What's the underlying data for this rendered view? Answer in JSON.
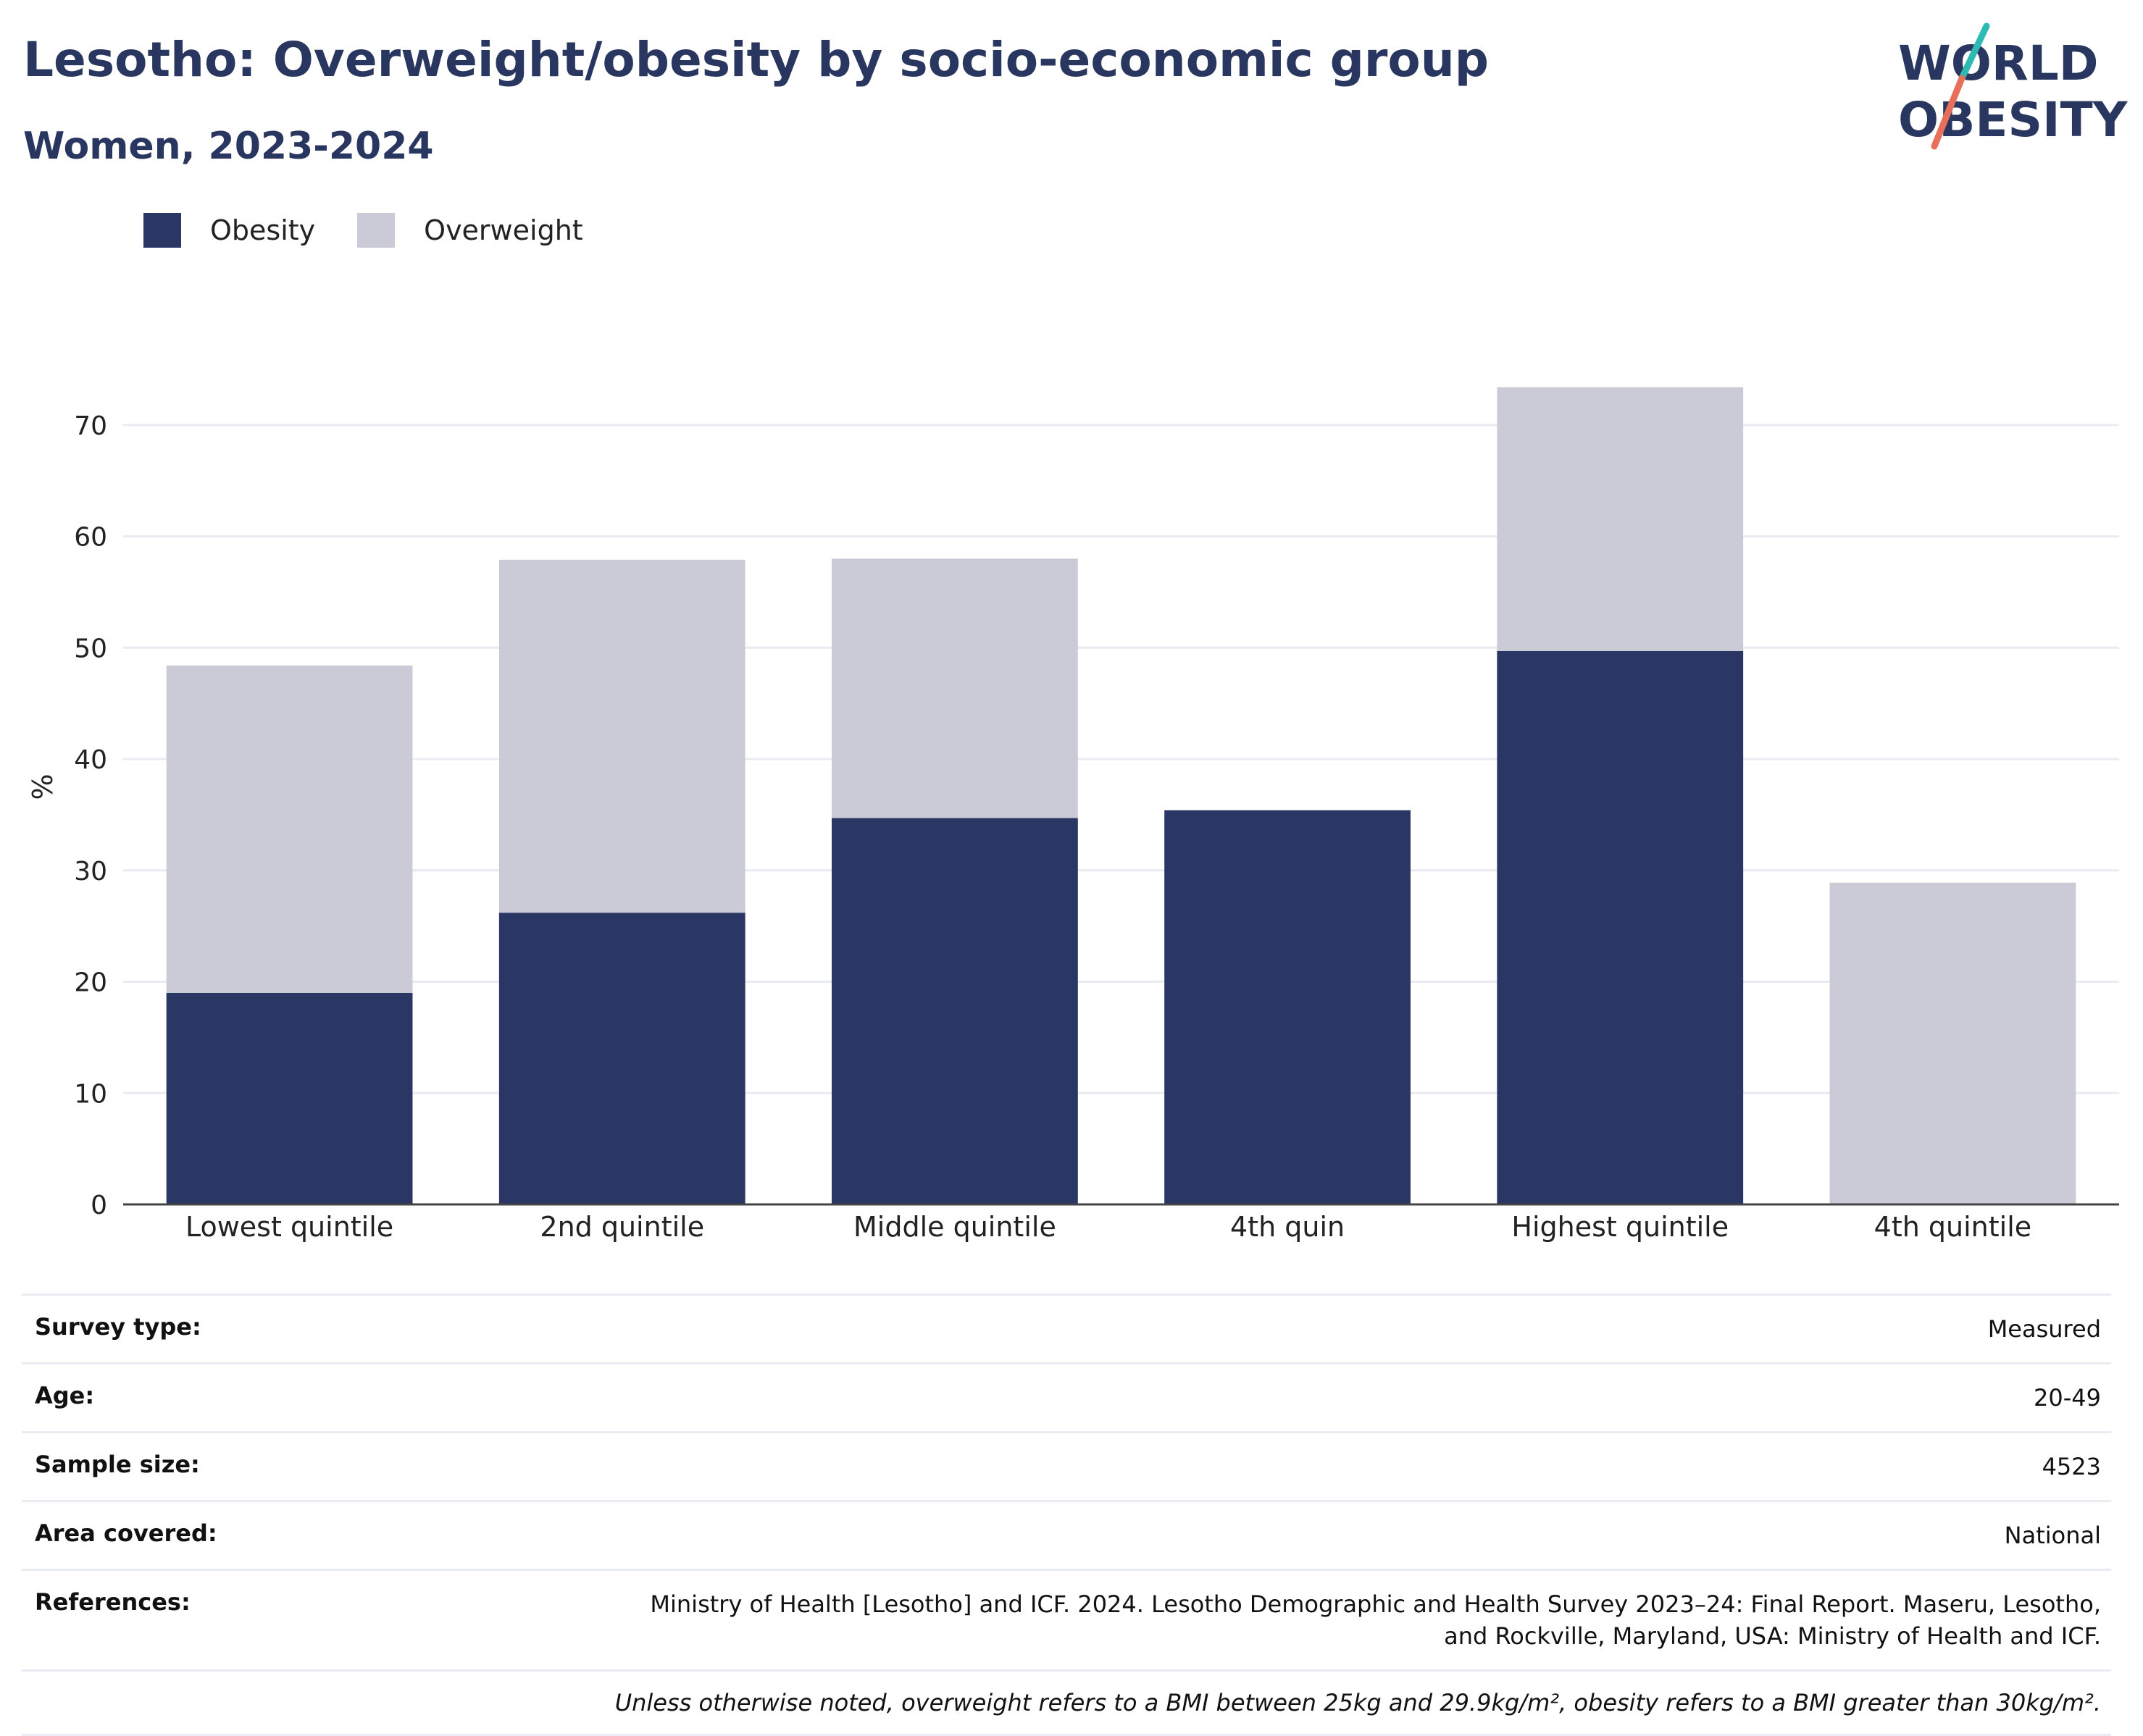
{
  "title": "Lesotho: Overweight/obesity by socio-economic group",
  "subtitle": "Women, 2023-2024",
  "logo": {
    "line1": "WORLD",
    "line2": "OBESITY"
  },
  "colors": {
    "obesity": "#2a3764",
    "overweight": "#cacbd7",
    "text": "#29365f",
    "logo_teal": "#2fb9b3",
    "logo_coral": "#e8705a",
    "grid": "#e9ebf2"
  },
  "legend": [
    {
      "label": "Obesity",
      "color": "#2a3764"
    },
    {
      "label": "Overweight",
      "color": "#cacbd7"
    }
  ],
  "chart_data": {
    "type": "bar",
    "stacked": true,
    "categories": [
      "Lowest quintile",
      "2nd quintile",
      "Middle quintile",
      "4th quin",
      "Highest quintile",
      "4th quintile"
    ],
    "series": [
      {
        "name": "Obesity",
        "values": [
          19.0,
          26.2,
          34.7,
          35.4,
          49.7,
          0
        ]
      },
      {
        "name": "Overweight",
        "values": [
          29.4,
          31.7,
          23.3,
          0,
          23.7,
          28.9
        ]
      }
    ],
    "ylabel": "%",
    "ylim": [
      0,
      75
    ],
    "yticks": [
      0,
      10,
      20,
      30,
      40,
      50,
      60,
      70
    ],
    "grid": true,
    "legend_position": "top-left"
  },
  "info": [
    {
      "key": "Survey type:",
      "value": "Measured"
    },
    {
      "key": "Age:",
      "value": "20-49"
    },
    {
      "key": "Sample size:",
      "value": "4523"
    },
    {
      "key": "Area covered:",
      "value": "National"
    },
    {
      "key": "References:",
      "value": "Ministry of Health [Lesotho] and ICF. 2024. Lesotho Demographic and Health Survey 2023–24: Final Report. Maseru, Lesotho, and Rockville, Maryland, USA: Ministry of Health and ICF."
    }
  ],
  "note": "Unless otherwise noted, overweight refers to a BMI between 25kg and 29.9kg/m², obesity refers to a BMI greater than 30kg/m²."
}
